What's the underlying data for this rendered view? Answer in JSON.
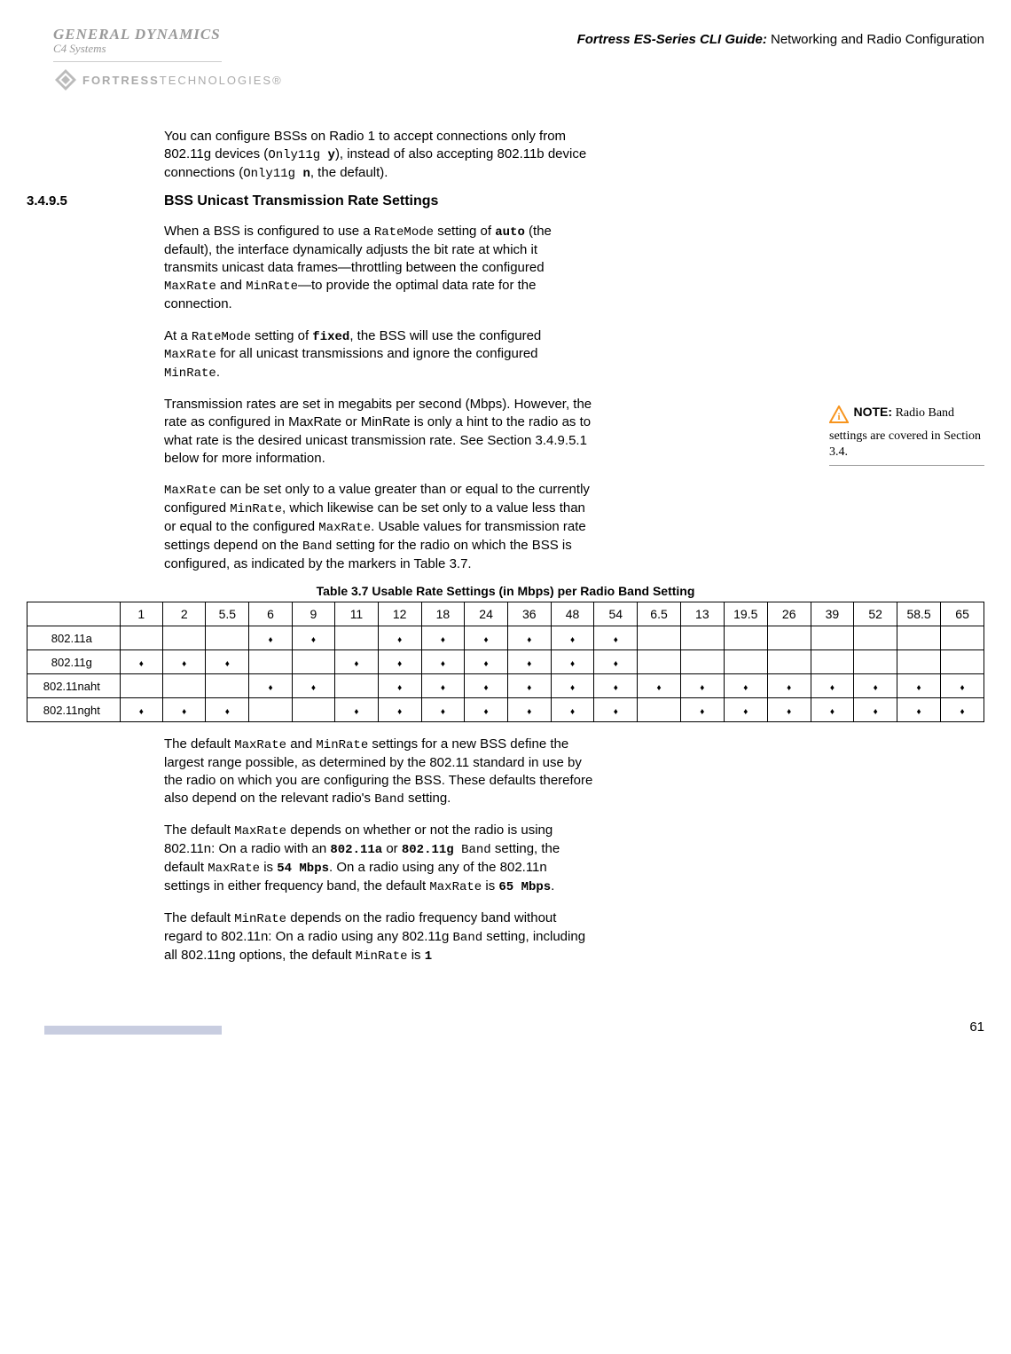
{
  "header": {
    "gd": "GENERAL DYNAMICS",
    "c4": "C4 Systems",
    "fortress_bold": "FORTRESS",
    "fortress_light": "TECHNOLOGIES®",
    "guide_bold": "Fortress ES-Series CLI Guide:",
    "guide_rest": " Networking and Radio Configuration"
  },
  "intro_para": {
    "p1a": "You can configure BSSs on Radio 1 to accept connections only from 802.11g devices (",
    "code1": "Only11g ",
    "code1b": "y",
    "p1b": "), instead of also accepting 802.11b device connections (",
    "code2": "Only11g ",
    "code2b": "n",
    "p1c": ", the default)."
  },
  "section": {
    "number": "3.4.9.5",
    "title": "BSS Unicast Transmission Rate Settings"
  },
  "p2": {
    "a": "When a BSS is configured to use a ",
    "ratemode": "RateMode",
    "b": " setting of ",
    "auto": "auto",
    "c": " (the default), the interface dynamically adjusts the bit rate at which it transmits unicast data frames—throttling between the configured ",
    "maxrate": "MaxRate",
    "d": " and ",
    "minrate": "MinRate",
    "e": "—to provide the optimal data rate for the connection."
  },
  "p3": {
    "a": "At a ",
    "ratemode": "RateMode",
    "b": " setting of ",
    "fixed": "fixed",
    "c": ", the BSS will use the configured ",
    "maxrate": "MaxRate",
    "d": " for all unicast transmissions and ignore the configured ",
    "minrate": "MinRate",
    "e": "."
  },
  "p4": "Transmission rates are set in megabits per second (Mbps). However, the rate as configured in MaxRate or MinRate is only a hint to the radio as to what rate is the desired unicast transmission rate. See Section 3.4.9.5.1 below for more information.",
  "p5": {
    "a": "",
    "maxrate": "MaxRate",
    "b": " can be set only to a value greater than or equal to the currently configured ",
    "minrate": "MinRate",
    "c": ", which likewise can be set only to a value less than or equal to the configured ",
    "maxrate2": "MaxRate",
    "d": ". Usable values for transmission rate settings depend on the ",
    "band": "Band",
    "e": " setting for the radio on which the BSS is configured, as indicated by the markers in Table 3.7."
  },
  "note": {
    "label": "NOTE:",
    "text": " Radio Band settings are covered in Section 3.4."
  },
  "table": {
    "caption": "Table 3.7 Usable Rate Settings (in Mbps) per Radio Band Setting",
    "headers": [
      "",
      "1",
      "2",
      "5.5",
      "6",
      "9",
      "11",
      "12",
      "18",
      "24",
      "36",
      "48",
      "54",
      "6.5",
      "13",
      "19.5",
      "26",
      "39",
      "52",
      "58.5",
      "65"
    ],
    "rows": [
      {
        "label": "802.11a",
        "cells": [
          0,
          0,
          0,
          1,
          1,
          0,
          1,
          1,
          1,
          1,
          1,
          1,
          0,
          0,
          0,
          0,
          0,
          0,
          0,
          0
        ]
      },
      {
        "label": "802.11g",
        "cells": [
          1,
          1,
          1,
          0,
          0,
          1,
          1,
          1,
          1,
          1,
          1,
          1,
          0,
          0,
          0,
          0,
          0,
          0,
          0,
          0
        ]
      },
      {
        "label": "802.11naht",
        "cells": [
          0,
          0,
          0,
          1,
          1,
          0,
          1,
          1,
          1,
          1,
          1,
          1,
          1,
          1,
          1,
          1,
          1,
          1,
          1,
          1
        ]
      },
      {
        "label": "802.11nght",
        "cells": [
          1,
          1,
          1,
          0,
          0,
          1,
          1,
          1,
          1,
          1,
          1,
          1,
          0,
          1,
          1,
          1,
          1,
          1,
          1,
          1
        ]
      }
    ]
  },
  "p6": {
    "a": "The default ",
    "maxrate": "MaxRate",
    "b": " and ",
    "minrate": "MinRate",
    "c": " settings for a new BSS define the largest range possible, as determined by the 802.11 standard in use by the radio on which you are configuring the BSS. These defaults therefore also depend on the relevant radio's ",
    "band": "Band",
    "d": " setting."
  },
  "p7": {
    "a": "The default ",
    "maxrate": "MaxRate",
    "b": " depends on whether or not the radio is using 802.11n: On a radio with an ",
    "a11": "802.11a",
    "c": " or ",
    "g11": "802.11g",
    "band": " Band",
    "d": " setting, the default ",
    "maxrate2": "MaxRate",
    "e": " is ",
    "mbps54": "54 Mbps",
    "f": ". On a radio using any of the 802.11n settings in either frequency band, the default ",
    "maxrate3": "MaxRate",
    "g": " is ",
    "mbps65": "65 Mbps",
    "h": "."
  },
  "p8": {
    "a": "The default ",
    "minrate": "MinRate",
    "b": " depends on the radio frequency band without regard to 802.11n: On a radio using any 802.11g ",
    "band": "Band",
    "c": " setting, including all 802.11ng options, the default ",
    "minrate2": "MinRate",
    "d": " is ",
    "one": "1"
  },
  "page_number": "61",
  "colors": {
    "logo_grey": "#999999",
    "footer_bar": "#c8cde0",
    "note_orange": "#f7941d"
  }
}
